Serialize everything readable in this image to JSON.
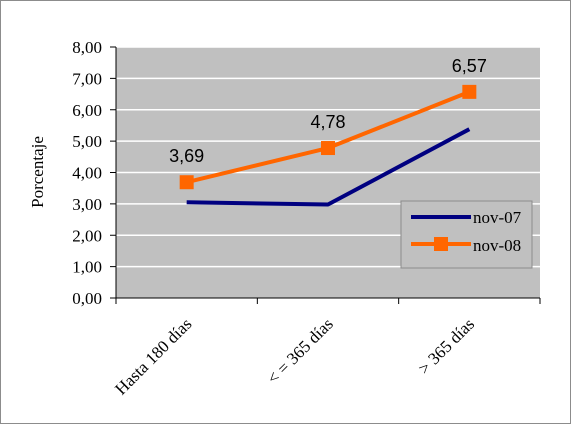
{
  "chart_data": {
    "type": "line",
    "categories": [
      "Hasta 180 días",
      "< = 365 días",
      "> 365 días"
    ],
    "series": [
      {
        "name": "nov-07",
        "values": [
          3.05,
          2.98,
          5.38
        ],
        "color": "#000080",
        "marker": "none"
      },
      {
        "name": "nov-08",
        "values": [
          3.69,
          4.78,
          6.57
        ],
        "color": "#ff6600",
        "marker": "square",
        "data_labels": [
          "3,69",
          "4,78",
          "6,57"
        ]
      }
    ],
    "title": "",
    "xlabel": "",
    "ylabel": "Porcentaje",
    "ylim": [
      0,
      8
    ],
    "yticks": [
      "0,00",
      "1,00",
      "2,00",
      "3,00",
      "4,00",
      "5,00",
      "6,00",
      "7,00",
      "8,00"
    ],
    "grid": true,
    "legend_position": "right",
    "plot_background": "#c0c0c0"
  }
}
